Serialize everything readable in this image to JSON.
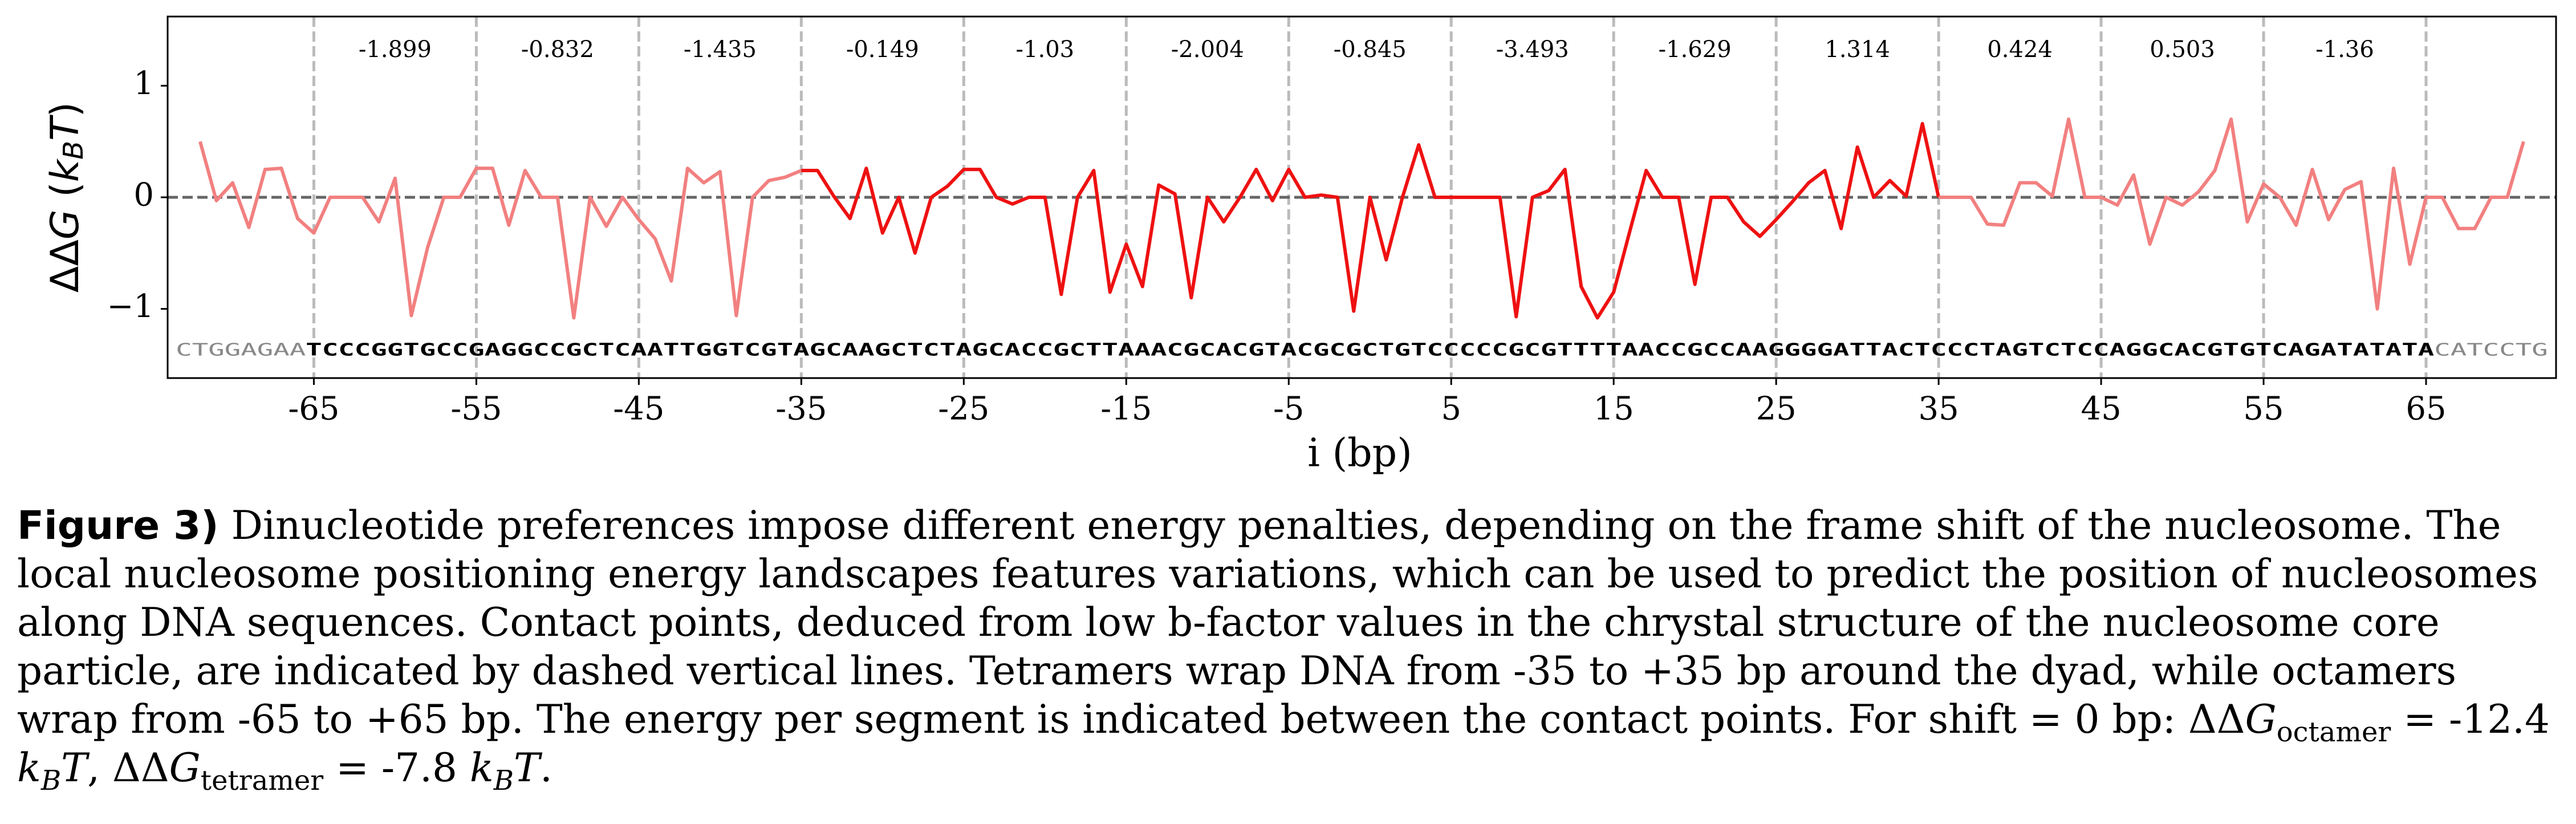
{
  "chart_data": {
    "type": "line",
    "y_label": {
      "delta": "ΔΔ",
      "g": "G",
      "open": " (",
      "k": "k",
      "sub": "B",
      "t": "T",
      "close": ")"
    },
    "x_label": "i (bp)",
    "xlim": [
      -74,
      73
    ],
    "ylim": [
      -1.62,
      1.62
    ],
    "xticks": [
      -65,
      -55,
      -45,
      -35,
      -25,
      -15,
      -5,
      5,
      15,
      25,
      35,
      45,
      55,
      65
    ],
    "yticks": [
      {
        "value": -1,
        "label": "−1"
      },
      {
        "value": 0,
        "label": "0"
      },
      {
        "value": 1,
        "label": "1"
      }
    ],
    "grid": "x",
    "reference_line": 0,
    "segment_energies": [
      -1.899,
      -0.832,
      -1.435,
      -0.149,
      -1.03,
      -2.004,
      -0.845,
      -3.493,
      -1.629,
      1.314,
      0.424,
      0.503,
      -1.36
    ],
    "sequence": {
      "left": "CTGGAGAA",
      "core": "TCCCGGTGCCGAGGCCGCTCAATTGGTCGTAGCAAGCTCTAGCACCGCTTAAACGCACGTACGCGCTGTCCCCCGCGTTTTAACCGCCAAGGGGATTACTCCCTAGTCTCCAGGCACGTGTCAGATATATA",
      "right": "CATCCTG"
    },
    "series": [
      {
        "color": "#f28080",
        "x": [
          -72,
          -71,
          -70,
          -69,
          -68,
          -67,
          -66,
          -65,
          -64,
          -63,
          -62,
          -61,
          -60,
          -59,
          -58,
          -57,
          -56,
          -55,
          -54,
          -53,
          -52,
          -51,
          -50,
          -49,
          -48,
          -47,
          -46,
          -45,
          -44,
          -43,
          -42,
          -41,
          -40,
          -39,
          -38,
          -37,
          -36,
          -35
        ],
        "values": [
          0.5,
          -0.03,
          0.13,
          -0.27,
          0.25,
          0.26,
          -0.19,
          -0.32,
          0,
          0,
          0,
          -0.22,
          0.17,
          -1.06,
          -0.45,
          0,
          0,
          0.26,
          0.26,
          -0.25,
          0.24,
          0,
          0,
          -1.08,
          0,
          -0.26,
          0,
          -0.2,
          -0.37,
          -0.75,
          0.26,
          0.13,
          0.23,
          -1.06,
          0,
          0.15,
          0.18,
          0.24
        ]
      },
      {
        "color": "#ee1111",
        "x": [
          -35,
          -34,
          -33,
          -32,
          -31,
          -30,
          -29,
          -28,
          -27,
          -26,
          -25,
          -24,
          -23,
          -22,
          -21,
          -20,
          -19,
          -18,
          -17,
          -16,
          -15,
          -14,
          -13,
          -12,
          -11,
          -10,
          -9,
          -8,
          -7,
          -6,
          -5,
          -4,
          -3,
          -2,
          -1,
          0,
          1,
          2,
          3,
          4,
          5,
          6,
          7,
          8,
          9,
          10,
          11,
          12,
          13,
          14,
          15,
          16,
          17,
          18,
          19,
          20,
          21,
          22,
          23,
          24,
          25,
          26,
          27,
          28,
          29,
          30,
          31,
          32,
          33,
          34,
          35
        ],
        "values": [
          0.24,
          0.24,
          0.01,
          -0.19,
          0.26,
          -0.32,
          0,
          -0.5,
          0,
          0.1,
          0.25,
          0.25,
          0,
          -0.06,
          0,
          0,
          -0.87,
          0,
          0.24,
          -0.85,
          -0.42,
          -0.8,
          0.11,
          0.03,
          -0.9,
          0,
          -0.22,
          0,
          0.25,
          -0.03,
          0.25,
          0,
          0.02,
          0,
          -1.02,
          0,
          -0.56,
          0,
          0.47,
          0,
          0,
          0,
          0,
          0,
          -1.07,
          0,
          0.06,
          0.25,
          -0.8,
          -1.08,
          -0.85,
          -0.3,
          0.24,
          0,
          0,
          -0.78,
          0,
          0,
          -0.22,
          -0.35,
          -0.2,
          -0.04,
          0.13,
          0.24,
          -0.28,
          0.45,
          0,
          0.15,
          0.01,
          0.66,
          0
        ]
      },
      {
        "color": "#f28080",
        "x": [
          35,
          36,
          37,
          38,
          39,
          40,
          41,
          42,
          43,
          44,
          45,
          46,
          47,
          48,
          49,
          50,
          51,
          52,
          53,
          54,
          55,
          56,
          57,
          58,
          59,
          60,
          61,
          62,
          63,
          64,
          65,
          66,
          67,
          68,
          69,
          70,
          71
        ],
        "values": [
          0,
          0,
          0,
          -0.24,
          -0.25,
          0.13,
          0.13,
          0.01,
          0.7,
          0,
          0,
          -0.07,
          0.2,
          -0.42,
          0,
          -0.07,
          0.05,
          0.24,
          0.7,
          -0.22,
          0.12,
          0,
          -0.25,
          0.25,
          -0.2,
          0.07,
          0.14,
          -1.0,
          0.26,
          -0.6,
          0,
          0,
          -0.28,
          -0.28,
          0,
          0,
          0.5
        ]
      }
    ]
  },
  "caption": {
    "label": "Figure 3)",
    "parts": [
      "Dinucleotide preferences impose different energy penalties, depending on the frame shift of the nucleosome. The local nucleosome positioning energy landscapes features variations, which can be used to predict the position of nucleosomes along DNA sequences. Contact points, deduced from low b-factor values in the chrystal structure of the nucleosome core particle, are indicated by dashed vertical lines. Tetramers wrap DNA from -35 to +35 bp around the dyad, while octamers wrap from -65 to +65 bp. The energy per segment is indicated between the contact points. For shift = 0 bp: ΔΔ",
      "G",
      "octamer",
      " = -12.4 ",
      "k",
      "B",
      "T",
      ", ΔΔ",
      "G",
      "tetramer",
      " = -7.8 ",
      "k",
      "B",
      "T",
      "."
    ]
  }
}
